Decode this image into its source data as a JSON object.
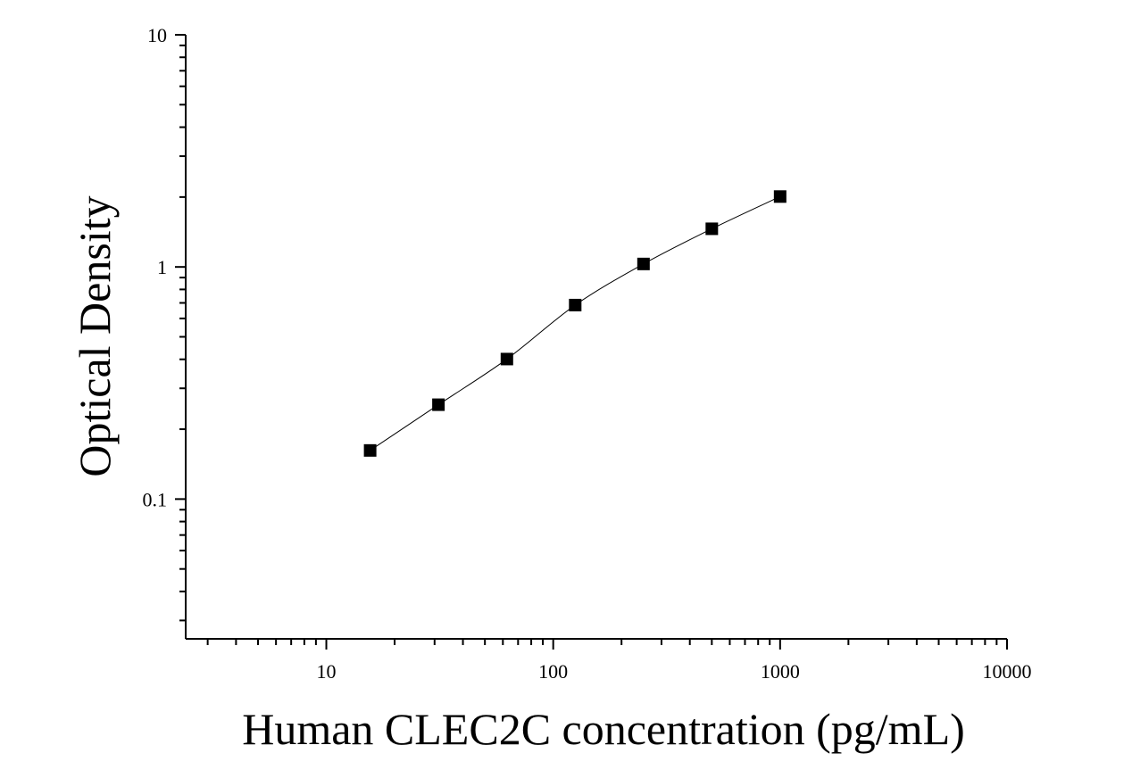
{
  "chart_data": {
    "type": "scatter",
    "title": "",
    "xlabel": "Human CLEC2C concentration (pg/mL)",
    "ylabel": "Optical Density",
    "x_scale": "log",
    "y_scale": "log",
    "xlim": [
      2.4,
      10000
    ],
    "ylim": [
      0.025,
      10
    ],
    "x_tick_labels": [
      "10",
      "100",
      "1000",
      "10000"
    ],
    "y_tick_labels": [
      "0.1",
      "1",
      "10"
    ],
    "grid": false,
    "legend": "none",
    "fit_curve": true,
    "marker": "square",
    "colors": {
      "marker": "#000000",
      "line": "#000000",
      "axis": "#000000"
    },
    "series": [
      {
        "x": [
          15.6,
          31.2,
          62.5,
          125,
          250,
          500,
          1000
        ],
        "y": [
          0.162,
          0.255,
          0.401,
          0.685,
          1.03,
          1.46,
          2.01
        ]
      }
    ]
  }
}
